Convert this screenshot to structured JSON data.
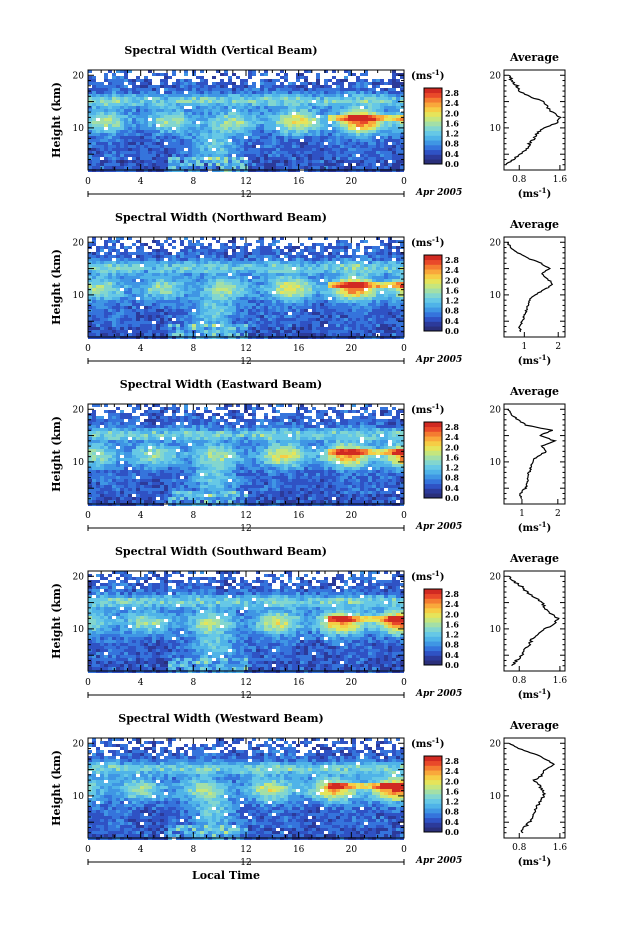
{
  "x_axis_label": "Local Time",
  "colormap": [
    "#2a2f7a",
    "#2c3a9a",
    "#2f52c4",
    "#3574dc",
    "#3f96e4",
    "#4fb3e8",
    "#66c8e6",
    "#82d6cf",
    "#a3dfa7",
    "#c6e67d",
    "#e6e45a",
    "#f6cd45",
    "#f9a83b",
    "#f47c31",
    "#e9492a",
    "#d12a22"
  ],
  "panels": [
    {
      "title": "Spectral Width (Vertical Beam)",
      "colorbar": {
        "unit": "(ms",
        "unit_exp": "-1",
        "unit_close": ")",
        "ticks": [
          "2.8",
          "2.4",
          "2.0",
          "1.6",
          "1.2",
          "0.8",
          "0.4",
          "0.0"
        ]
      },
      "x_ticks": [
        "0",
        "4",
        "8",
        "12",
        "16",
        "20",
        "0"
      ],
      "day_label": "12",
      "date_label": "Apr 2005",
      "ylabel": "Height (km)",
      "y_ticks": [
        "20",
        "10"
      ],
      "avg": {
        "title": "Average",
        "x_ticks": [
          "0.8",
          "1.6"
        ],
        "xlabel": "(ms",
        "xlabel_exp": "-1",
        "xlabel_close": ")",
        "y_ticks": [
          "20",
          "10"
        ]
      }
    },
    {
      "title": "Spectral Width (Northward Beam)",
      "colorbar": {
        "unit": "(ms",
        "unit_exp": "-1",
        "unit_close": ")",
        "ticks": [
          "2.8",
          "2.4",
          "2.0",
          "1.6",
          "1.2",
          "0.8",
          "0.4",
          "0.0"
        ]
      },
      "x_ticks": [
        "0",
        "4",
        "8",
        "12",
        "16",
        "20",
        "0"
      ],
      "day_label": "12",
      "date_label": "Apr 2005",
      "ylabel": "Height (km)",
      "y_ticks": [
        "20",
        "10"
      ],
      "avg": {
        "title": "Average",
        "x_ticks": [
          "1",
          "2"
        ],
        "xlabel": "(ms",
        "xlabel_exp": "-1",
        "xlabel_close": ")",
        "y_ticks": [
          "20",
          "10"
        ]
      }
    },
    {
      "title": "Spectral Width (Eastward Beam)",
      "colorbar": {
        "unit": "(ms",
        "unit_exp": "-1",
        "unit_close": ")",
        "ticks": [
          "2.8",
          "2.4",
          "2.0",
          "1.6",
          "1.2",
          "0.8",
          "0.4",
          "0.0"
        ]
      },
      "x_ticks": [
        "0",
        "4",
        "8",
        "12",
        "16",
        "20",
        "0"
      ],
      "day_label": "12",
      "date_label": "Apr 2005",
      "ylabel": "Height (km)",
      "y_ticks": [
        "20",
        "10"
      ],
      "avg": {
        "title": "Average",
        "x_ticks": [
          "1",
          "2"
        ],
        "xlabel": "(ms",
        "xlabel_exp": "-1",
        "xlabel_close": ")",
        "y_ticks": [
          "20",
          "10"
        ]
      }
    },
    {
      "title": "Spectral Width (Southward Beam)",
      "colorbar": {
        "unit": "(ms",
        "unit_exp": "-1",
        "unit_close": ")",
        "ticks": [
          "2.8",
          "2.4",
          "2.0",
          "1.6",
          "1.2",
          "0.8",
          "0.4",
          "0.0"
        ]
      },
      "x_ticks": [
        "0",
        "4",
        "8",
        "12",
        "16",
        "20",
        "0"
      ],
      "day_label": "12",
      "date_label": "Apr 2005",
      "ylabel": "Height (km)",
      "y_ticks": [
        "20",
        "10"
      ],
      "avg": {
        "title": "Average",
        "x_ticks": [
          "0.8",
          "1.6"
        ],
        "xlabel": "(ms",
        "xlabel_exp": "-1",
        "xlabel_close": ")",
        "y_ticks": [
          "20",
          "10"
        ]
      }
    },
    {
      "title": "Spectral Width (Westward Beam)",
      "colorbar": {
        "unit": "(ms",
        "unit_exp": "-1",
        "unit_close": ")",
        "ticks": [
          "2.8",
          "2.4",
          "2.0",
          "1.6",
          "1.2",
          "0.8",
          "0.4",
          "0.0"
        ]
      },
      "x_ticks": [
        "0",
        "4",
        "8",
        "12",
        "16",
        "20",
        "0"
      ],
      "day_label": "12",
      "date_label": "Apr 2005",
      "ylabel": "Height (km)",
      "y_ticks": [
        "20",
        "10"
      ],
      "avg": {
        "title": "Average",
        "x_ticks": [
          "0.8",
          "1.6"
        ],
        "xlabel": "(ms",
        "xlabel_exp": "-1",
        "xlabel_close": ")",
        "y_ticks": [
          "20",
          "10"
        ]
      }
    }
  ],
  "chart_data": [
    {
      "type": "heatmap",
      "title": "Spectral Width (Vertical Beam)",
      "xlabel": "Local Time",
      "ylabel": "Height (km)",
      "xlim": [
        0,
        24
      ],
      "ylim": [
        2,
        21
      ],
      "zlim": [
        0.0,
        3.0
      ],
      "x_ticks": [
        0,
        4,
        8,
        12,
        16,
        20,
        24
      ],
      "y_ticks": [
        10,
        20
      ],
      "colorbar_label": "(ms-1)",
      "average_profile": {
        "title": "Average",
        "xlabel": "(ms-1)",
        "xlim": [
          0.5,
          1.7
        ],
        "heights": [
          3,
          4,
          5,
          6,
          7,
          8,
          9,
          10,
          11,
          12,
          13,
          14,
          15,
          16,
          17,
          18,
          19,
          20
        ],
        "values": [
          0.55,
          0.7,
          0.8,
          0.95,
          1.0,
          1.1,
          1.15,
          1.3,
          1.55,
          1.6,
          1.45,
          1.35,
          1.3,
          1.0,
          0.8,
          0.75,
          0.65,
          0.6
        ]
      }
    },
    {
      "type": "heatmap",
      "title": "Spectral Width (Northward Beam)",
      "xlabel": "Local Time",
      "ylabel": "Height (km)",
      "xlim": [
        0,
        24
      ],
      "ylim": [
        2,
        21
      ],
      "zlim": [
        0.0,
        3.0
      ],
      "x_ticks": [
        0,
        4,
        8,
        12,
        16,
        20,
        24
      ],
      "y_ticks": [
        10,
        20
      ],
      "colorbar_label": "(ms-1)",
      "average_profile": {
        "title": "Average",
        "xlabel": "(ms-1)",
        "xlim": [
          0.4,
          2.2
        ],
        "heights": [
          3,
          4,
          5,
          6,
          7,
          8,
          9,
          10,
          11,
          12,
          13,
          14,
          15,
          16,
          17,
          18,
          19,
          20
        ],
        "values": [
          0.9,
          0.85,
          0.95,
          1.0,
          1.05,
          1.1,
          1.15,
          1.3,
          1.6,
          1.85,
          1.7,
          1.5,
          1.75,
          1.5,
          1.1,
          0.8,
          0.6,
          0.5
        ]
      }
    },
    {
      "type": "heatmap",
      "title": "Spectral Width (Eastward Beam)",
      "xlabel": "Local Time",
      "ylabel": "Height (km)",
      "xlim": [
        0,
        24
      ],
      "ylim": [
        2,
        21
      ],
      "zlim": [
        0.0,
        3.0
      ],
      "x_ticks": [
        0,
        4,
        8,
        12,
        16,
        20,
        24
      ],
      "y_ticks": [
        10,
        20
      ],
      "colorbar_label": "(ms-1)",
      "average_profile": {
        "title": "Average",
        "xlabel": "(ms-1)",
        "xlim": [
          0.5,
          2.2
        ],
        "heights": [
          3,
          4,
          5,
          6,
          7,
          8,
          9,
          10,
          11,
          12,
          13,
          14,
          15,
          16,
          17,
          18,
          19,
          20
        ],
        "values": [
          1.0,
          0.95,
          1.1,
          1.15,
          1.15,
          1.2,
          1.25,
          1.3,
          1.4,
          1.7,
          1.55,
          1.9,
          1.5,
          1.85,
          1.1,
          0.9,
          0.7,
          0.6
        ]
      }
    },
    {
      "type": "heatmap",
      "title": "Spectral Width (Southward Beam)",
      "xlabel": "Local Time",
      "ylabel": "Height (km)",
      "xlim": [
        0,
        24
      ],
      "ylim": [
        2,
        21
      ],
      "zlim": [
        0.0,
        3.0
      ],
      "x_ticks": [
        0,
        4,
        8,
        12,
        16,
        20,
        24
      ],
      "y_ticks": [
        10,
        20
      ],
      "colorbar_label": "(ms-1)",
      "average_profile": {
        "title": "Average",
        "xlabel": "(ms-1)",
        "xlim": [
          0.5,
          1.7
        ],
        "heights": [
          3,
          4,
          5,
          6,
          7,
          8,
          9,
          10,
          11,
          12,
          13,
          14,
          15,
          16,
          17,
          18,
          19,
          20
        ],
        "values": [
          0.65,
          0.75,
          0.85,
          0.9,
          1.0,
          1.05,
          1.15,
          1.3,
          1.5,
          1.55,
          1.4,
          1.3,
          1.25,
          1.1,
          0.95,
          0.85,
          0.7,
          0.6
        ]
      }
    },
    {
      "type": "heatmap",
      "title": "Spectral Width (Westward Beam)",
      "xlabel": "Local Time",
      "ylabel": "Height (km)",
      "xlim": [
        0,
        24
      ],
      "ylim": [
        2,
        21
      ],
      "zlim": [
        0.0,
        3.0
      ],
      "x_ticks": [
        0,
        4,
        8,
        12,
        16,
        20,
        24
      ],
      "y_ticks": [
        10,
        20
      ],
      "colorbar_label": "(ms-1)",
      "average_profile": {
        "title": "Average",
        "xlabel": "(ms-1)",
        "xlim": [
          0.5,
          1.7
        ],
        "heights": [
          3,
          4,
          5,
          6,
          7,
          8,
          9,
          10,
          11,
          12,
          13,
          14,
          15,
          16,
          17,
          18,
          19,
          20
        ],
        "values": [
          0.85,
          0.9,
          1.0,
          1.05,
          1.1,
          1.15,
          1.2,
          1.3,
          1.25,
          1.2,
          1.1,
          1.25,
          1.3,
          1.5,
          1.3,
          1.1,
          0.8,
          0.6
        ]
      }
    }
  ]
}
